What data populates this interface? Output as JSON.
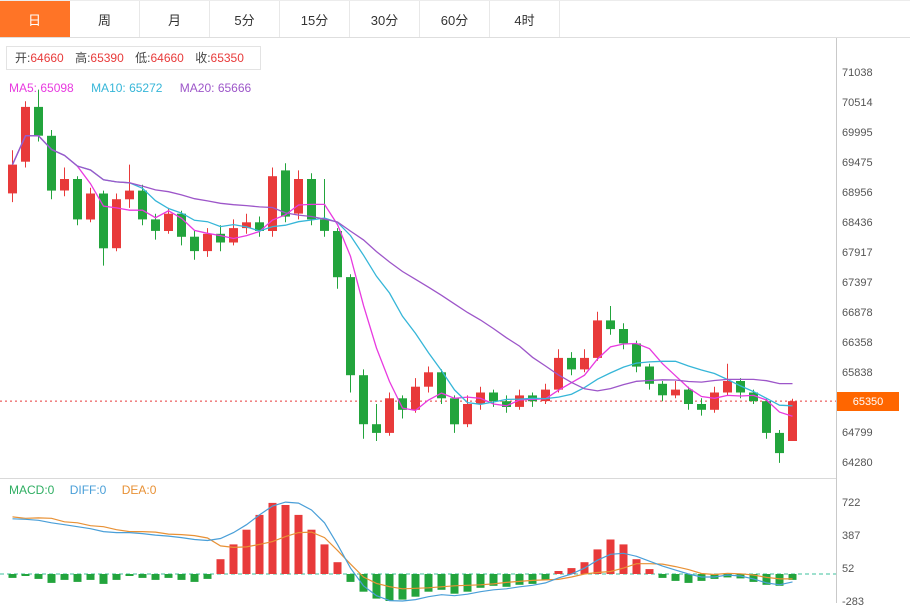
{
  "tabs": [
    {
      "label": "日",
      "active": true
    },
    {
      "label": "周",
      "active": false
    },
    {
      "label": "月",
      "active": false
    },
    {
      "label": "5分",
      "active": false
    },
    {
      "label": "15分",
      "active": false
    },
    {
      "label": "30分",
      "active": false
    },
    {
      "label": "60分",
      "active": false
    },
    {
      "label": "4时",
      "active": false
    }
  ],
  "info": {
    "open_label": "开:",
    "open": "64660",
    "high_label": "高:",
    "high": "65390",
    "low_label": "低:",
    "low": "64660",
    "close_label": "收:",
    "close": "65350"
  },
  "ma_legend": {
    "ma5": "MA5: 65098",
    "ma10": "MA10: 65272",
    "ma20": "MA20: 65666"
  },
  "macd_legend": {
    "macd": "MACD:0",
    "diff": "DIFF:0",
    "dea": "DEA:0"
  },
  "colors": {
    "up": "#e83a3a",
    "down": "#22a43c",
    "tab_active": "#ff7426",
    "price_flag_bg": "#ff6600",
    "dotted_line": "#e83a3a",
    "ma5": "#e83ae0",
    "ma10": "#36b6d8",
    "ma20": "#9d56c9",
    "diff_line": "#4a9fd8",
    "dea_line": "#e89135",
    "macd_text": "#2fae62",
    "zero_line": "#3cc29e"
  },
  "chart_data": {
    "type": "candlestick",
    "subpanel": "macd",
    "up_means": "close>=open (red, CN convention)",
    "price_axis": {
      "ticks": [
        71038,
        70514,
        69995,
        69475,
        68956,
        68436,
        67917,
        67397,
        66878,
        66358,
        65838,
        64799,
        64280
      ],
      "tick_step": 520,
      "current_price": 65350
    },
    "ma_periods": [
      5,
      10,
      20
    ],
    "ma_last_values": {
      "MA5": 65098,
      "MA10": 65272,
      "MA20": 65666
    },
    "candles": [
      [
        68950,
        69700,
        68800,
        69450
      ],
      [
        69500,
        70550,
        69400,
        70450
      ],
      [
        70450,
        70750,
        69850,
        69950
      ],
      [
        69950,
        70050,
        68850,
        69000
      ],
      [
        69000,
        69400,
        68900,
        69200
      ],
      [
        69200,
        69250,
        68400,
        68500
      ],
      [
        68500,
        69050,
        68450,
        68950
      ],
      [
        68950,
        69000,
        67700,
        68000
      ],
      [
        68000,
        68950,
        67950,
        68850
      ],
      [
        68850,
        69450,
        68700,
        69000
      ],
      [
        69000,
        69100,
        68400,
        68500
      ],
      [
        68500,
        68600,
        68150,
        68300
      ],
      [
        68300,
        68700,
        68250,
        68600
      ],
      [
        68600,
        68650,
        68050,
        68200
      ],
      [
        68200,
        68300,
        67800,
        67950
      ],
      [
        67950,
        68350,
        67850,
        68250
      ],
      [
        68250,
        68400,
        67950,
        68100
      ],
      [
        68100,
        68500,
        68050,
        68350
      ],
      [
        68350,
        68600,
        68250,
        68450
      ],
      [
        68450,
        68550,
        68200,
        68300
      ],
      [
        68300,
        69400,
        68200,
        69250
      ],
      [
        69350,
        69475,
        68450,
        68550
      ],
      [
        68600,
        69350,
        68500,
        69200
      ],
      [
        69200,
        69300,
        68400,
        68500
      ],
      [
        68500,
        69200,
        68200,
        68300
      ],
      [
        68300,
        68350,
        67300,
        67500
      ],
      [
        67500,
        67550,
        65500,
        65800
      ],
      [
        65800,
        65900,
        64700,
        64950
      ],
      [
        64950,
        65300,
        64660,
        64800
      ],
      [
        64800,
        65500,
        64750,
        65400
      ],
      [
        65400,
        65450,
        65050,
        65200
      ],
      [
        65200,
        65750,
        65150,
        65600
      ],
      [
        65600,
        65950,
        65500,
        65850
      ],
      [
        65850,
        65900,
        65300,
        65400
      ],
      [
        65400,
        65450,
        64800,
        64950
      ],
      [
        64950,
        65450,
        64900,
        65300
      ],
      [
        65300,
        65600,
        65200,
        65500
      ],
      [
        65500,
        65550,
        65250,
        65350
      ],
      [
        65350,
        65450,
        65150,
        65250
      ],
      [
        65250,
        65550,
        65200,
        65450
      ],
      [
        65450,
        65500,
        65250,
        65350
      ],
      [
        65350,
        65650,
        65300,
        65550
      ],
      [
        65550,
        66250,
        65500,
        66100
      ],
      [
        66100,
        66200,
        65800,
        65900
      ],
      [
        65900,
        66250,
        65850,
        66100
      ],
      [
        66100,
        66900,
        66050,
        66750
      ],
      [
        66750,
        67000,
        66500,
        66600
      ],
      [
        66600,
        66700,
        66250,
        66350
      ],
      [
        66350,
        66400,
        65850,
        65950
      ],
      [
        65950,
        66000,
        65550,
        65650
      ],
      [
        65650,
        65700,
        65350,
        65450
      ],
      [
        65450,
        65700,
        65400,
        65550
      ],
      [
        65550,
        65600,
        65200,
        65300
      ],
      [
        65300,
        65400,
        65100,
        65200
      ],
      [
        65200,
        65600,
        65150,
        65500
      ],
      [
        65500,
        66000,
        65450,
        65700
      ],
      [
        65700,
        65750,
        65400,
        65500
      ],
      [
        65500,
        65550,
        65300,
        65350
      ],
      [
        65350,
        65400,
        64700,
        64800
      ],
      [
        64800,
        64850,
        64280,
        64450
      ],
      [
        64660,
        65390,
        64660,
        65350
      ]
    ],
    "macd": {
      "ticks": [
        722,
        387,
        52,
        -283
      ],
      "hist": [
        -40,
        -20,
        -50,
        -90,
        -60,
        -80,
        -60,
        -100,
        -60,
        -20,
        -40,
        -60,
        -40,
        -60,
        -80,
        -50,
        150,
        300,
        450,
        600,
        722,
        700,
        600,
        450,
        300,
        120,
        -80,
        -180,
        -250,
        -283,
        -260,
        -230,
        -180,
        -160,
        -200,
        -180,
        -140,
        -120,
        -130,
        -110,
        -100,
        -60,
        30,
        60,
        120,
        250,
        350,
        300,
        150,
        50,
        -40,
        -70,
        -90,
        -70,
        -50,
        -35,
        -45,
        -80,
        -110,
        -120,
        -60
      ],
      "diff": [
        560,
        555,
        545,
        520,
        500,
        480,
        460,
        430,
        420,
        420,
        410,
        395,
        385,
        370,
        350,
        340,
        360,
        420,
        500,
        600,
        690,
        730,
        720,
        650,
        520,
        300,
        60,
        -120,
        -220,
        -270,
        -280,
        -260,
        -230,
        -210,
        -220,
        -205,
        -180,
        -160,
        -150,
        -130,
        -115,
        -90,
        -40,
        0,
        60,
        140,
        200,
        210,
        180,
        130,
        80,
        40,
        0,
        -30,
        -30,
        -10,
        -20,
        -50,
        -90,
        -110,
        -80
      ]
    }
  }
}
